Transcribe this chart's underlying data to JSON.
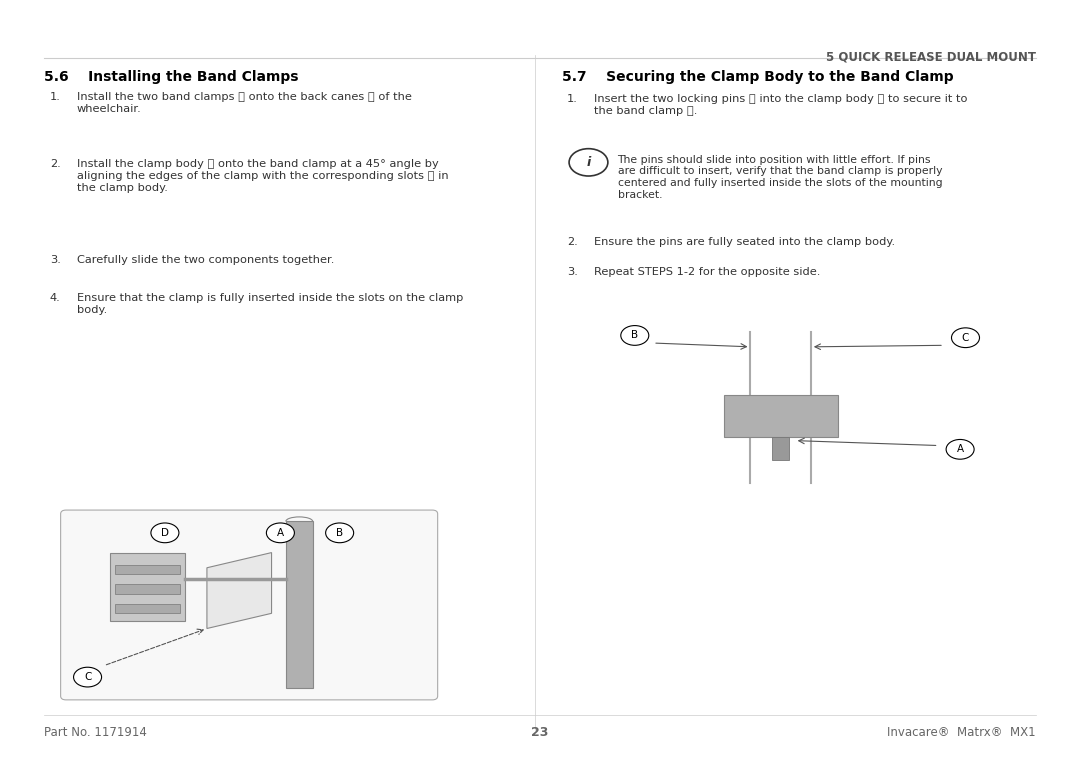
{
  "bg_color": "#ffffff",
  "page_width": 10.8,
  "page_height": 7.62,
  "header_text": "5 QUICK RELEASE DUAL MOUNT",
  "section_56_title": "5.6    Installing the Band Clamps",
  "section_57_title": "5.7    Securing the Clamp Body to the Band Clamp",
  "section_56_items": [
    "Install the two band clamps Ⓐ onto the back canes Ⓑ of the\nwheelchair.",
    "Install the clamp body Ⓒ onto the band clamp at a 45° angle by\naligning the edges of the clamp with the corresponding slots Ⓓ in\nthe clamp body.",
    "Carefully slide the two components together.",
    "Ensure that the clamp is fully inserted inside the slots on the clamp\nbody."
  ],
  "section_57_items": [
    "Insert the two locking pins Ⓐ into the clamp body Ⓑ to secure it to\nthe band clamp Ⓒ."
  ],
  "info_box_text": "The pins should slide into position with little effort. If pins\nare difficult to insert, verify that the band clamp is properly\ncentered and fully inserted inside the slots of the mounting\nbracket.",
  "section_57_items2": [
    "Ensure the pins are fully seated into the clamp body.",
    "Repeat STEPS 1-2 for the opposite side."
  ],
  "footer_left": "Part No. 1171914",
  "footer_center": "23",
  "footer_right": "Invacare®  Matrx®  MX1",
  "text_color": "#333333",
  "header_color": "#555555",
  "title_color": "#000000",
  "footer_color": "#666666",
  "divider_color": "#cccccc"
}
